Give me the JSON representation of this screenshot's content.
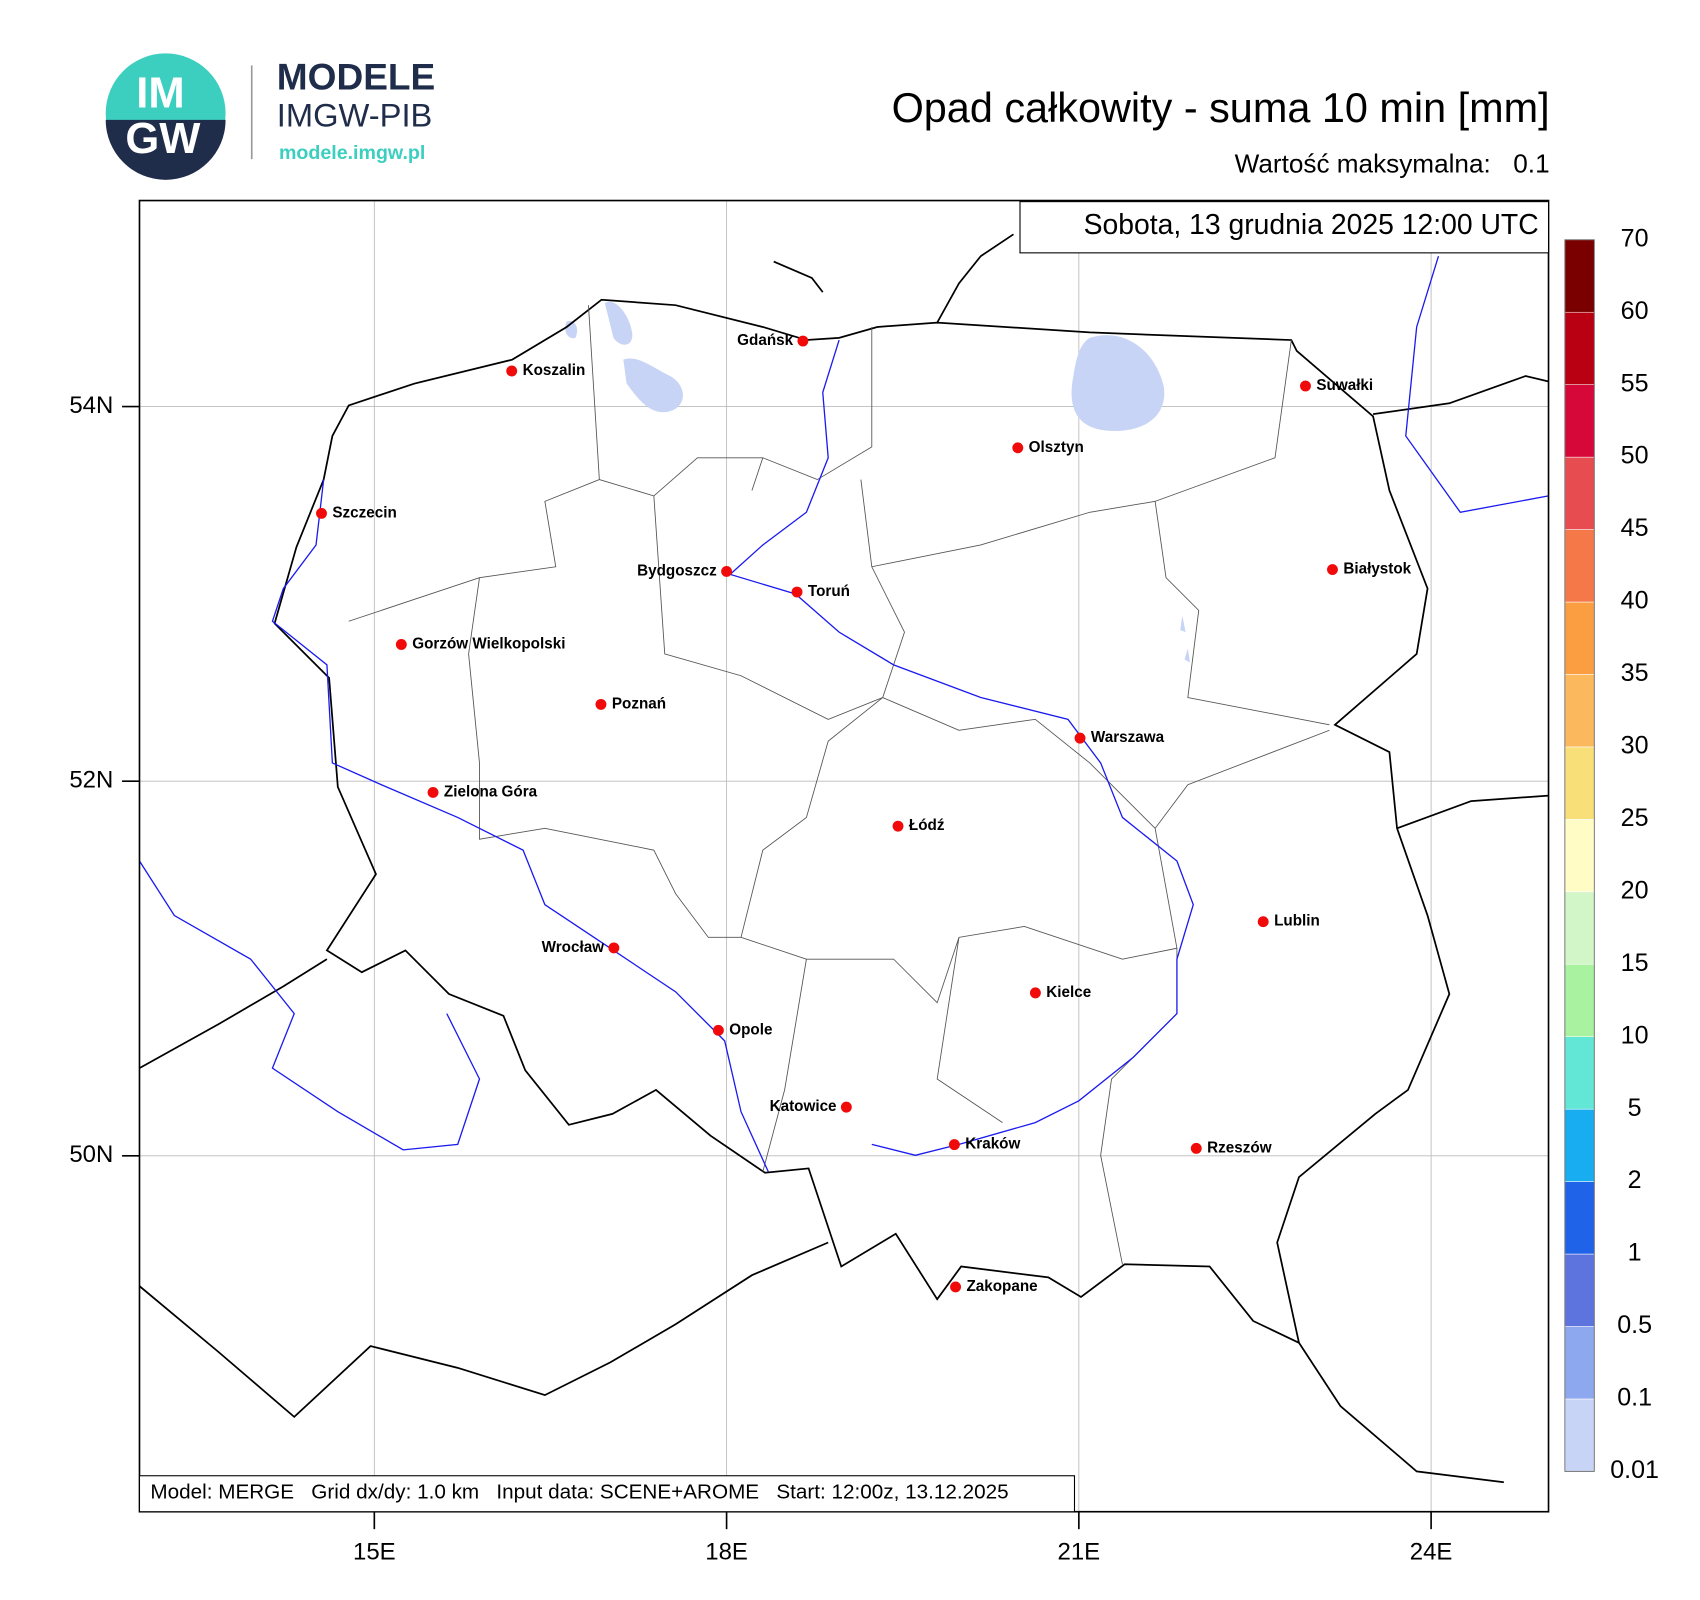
{
  "header": {
    "logo_top": "IM",
    "logo_bottom": "GW",
    "brand": "MODELE",
    "org": "IMGW-PIB",
    "url": "modele.imgw.pl"
  },
  "title": "Opad całkowity - suma 10 min [mm]",
  "max_label": "Wartość maksymalna:",
  "max_value": 0.1,
  "valid_time": "Sobota, 13 grudnia 2025 12:00 UTC",
  "footer": "Model: MERGE   Grid dx/dy: 1.0 km   Input data: SCENE+AROME   Start: 12:00z, 13.12.2025",
  "map": {
    "xlim": [
      13,
      25
    ],
    "ylim": [
      48.1,
      55.1
    ],
    "xticks": [
      {
        "value": 15,
        "label": "15E"
      },
      {
        "value": 18,
        "label": "18E"
      },
      {
        "value": 21,
        "label": "21E"
      },
      {
        "value": 24,
        "label": "24E"
      }
    ],
    "yticks": [
      {
        "value": 50,
        "label": "50N"
      },
      {
        "value": 52,
        "label": "52N"
      },
      {
        "value": 54,
        "label": "54N"
      }
    ],
    "grid": true,
    "cities": [
      {
        "name": "Gdańsk",
        "lon": 18.65,
        "lat": 54.35
      },
      {
        "name": "Koszalin",
        "lon": 16.17,
        "lat": 54.19
      },
      {
        "name": "Szczecin",
        "lon": 14.55,
        "lat": 53.43
      },
      {
        "name": "Suwałki",
        "lon": 22.93,
        "lat": 54.11
      },
      {
        "name": "Olsztyn",
        "lon": 20.48,
        "lat": 53.78
      },
      {
        "name": "Bydgoszcz",
        "lon": 18.0,
        "lat": 53.12
      },
      {
        "name": "Toruń",
        "lon": 18.6,
        "lat": 53.01
      },
      {
        "name": "Białystok",
        "lon": 23.16,
        "lat": 53.13
      },
      {
        "name": "Gorzów Wielkopolski",
        "lon": 15.23,
        "lat": 52.73
      },
      {
        "name": "Poznań",
        "lon": 16.93,
        "lat": 52.41
      },
      {
        "name": "Warszawa",
        "lon": 21.01,
        "lat": 52.23
      },
      {
        "name": "Zielona Góra",
        "lon": 15.5,
        "lat": 51.94
      },
      {
        "name": "Łódź",
        "lon": 19.46,
        "lat": 51.76
      },
      {
        "name": "Lublin",
        "lon": 22.57,
        "lat": 51.25
      },
      {
        "name": "Wrocław",
        "lon": 17.04,
        "lat": 51.11
      },
      {
        "name": "Kielce",
        "lon": 20.63,
        "lat": 50.87
      },
      {
        "name": "Opole",
        "lon": 17.93,
        "lat": 50.67
      },
      {
        "name": "Katowice",
        "lon": 19.02,
        "lat": 50.26
      },
      {
        "name": "Kraków",
        "lon": 19.94,
        "lat": 50.06
      },
      {
        "name": "Rzeszów",
        "lon": 22.0,
        "lat": 50.04
      },
      {
        "name": "Zakopane",
        "lon": 19.95,
        "lat": 49.3
      }
    ],
    "colorbar": {
      "levels": [
        0.01,
        0.1,
        0.5,
        1,
        2,
        5,
        10,
        15,
        20,
        25,
        30,
        35,
        40,
        45,
        50,
        55,
        60,
        70
      ],
      "colors": [
        "#c8d4f5",
        "#8ea8ef",
        "#5d74df",
        "#1f64e8",
        "#17adf0",
        "#62e6d6",
        "#a8f2a0",
        "#d2f6c8",
        "#fffcc6",
        "#f9df78",
        "#fbb85c",
        "#fb9e42",
        "#f47848",
        "#e64c50",
        "#d6083a",
        "#b80012",
        "#7a0000"
      ]
    }
  }
}
